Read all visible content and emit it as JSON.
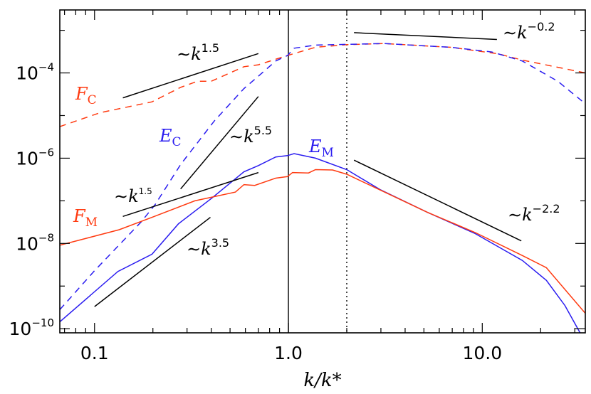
{
  "chart_data": {
    "type": "line",
    "xlabel": "k/k*",
    "xscale": "log",
    "yscale": "log",
    "xlim": [
      0.0662,
      34
    ],
    "ylim": [
      8e-11,
      0.003
    ],
    "grid": false,
    "x_ticks": [
      {
        "value": 0.1,
        "label": "0.1"
      },
      {
        "value": 1.0,
        "label": "1.0"
      },
      {
        "value": 10.0,
        "label": "10.0"
      }
    ],
    "y_ticks": [
      {
        "value": 0.0001,
        "base": "10",
        "exp": "−4"
      },
      {
        "value": 1e-06,
        "base": "10",
        "exp": "−6"
      },
      {
        "value": 1e-08,
        "base": "10",
        "exp": "−8"
      },
      {
        "value": 1e-10,
        "base": "10",
        "exp": "−10"
      }
    ],
    "series": [
      {
        "name": "F_C",
        "label_main": "F",
        "label_sub": "C",
        "color": "#ff3a10",
        "style": "dashed",
        "x": [
          0.0662,
          0.107,
          0.198,
          0.278,
          0.34,
          0.4,
          0.59,
          0.7,
          0.99,
          1.38,
          2.0,
          3.1,
          6.9,
          12.1,
          16.1,
          34
        ],
        "y": [
          5.5e-06,
          1.17e-05,
          2.1e-05,
          4.6e-05,
          6.4e-05,
          6.4e-05,
          0.00014,
          0.000155,
          0.000257,
          0.0004,
          0.00046,
          0.00049,
          0.0004,
          0.00028,
          0.0002,
          0.0001
        ]
      },
      {
        "name": "E_C",
        "label_main": "E",
        "label_sub": "C",
        "color": "#2a1cf0",
        "style": "dashed",
        "x": [
          0.0662,
          0.1,
          0.174,
          0.205,
          0.278,
          0.414,
          0.59,
          0.7,
          0.86,
          0.99,
          1.07,
          1.38,
          3.1,
          6.9,
          11.2,
          16.1,
          24.5,
          34
        ],
        "y": [
          2.8e-10,
          2.3e-09,
          3.2e-08,
          8.1e-08,
          7.1e-07,
          7.4e-06,
          4.3e-05,
          8.4e-05,
          0.00019,
          0.000257,
          0.00038,
          0.00045,
          0.00049,
          0.0004,
          0.00031,
          0.00019,
          6.4e-05,
          1.9e-05
        ]
      },
      {
        "name": "E_M",
        "label_main": "E",
        "label_sub": "M",
        "color": "#2a1cf0",
        "style": "solid",
        "x": [
          0.0662,
          0.132,
          0.198,
          0.271,
          0.4,
          0.59,
          0.7,
          0.86,
          0.99,
          1.07,
          1.38,
          2.0,
          2.97,
          5.2,
          9.2,
          16.1,
          21.4,
          26.7,
          32
        ],
        "y": [
          1.45e-10,
          2.2e-09,
          5.6e-09,
          2.9e-08,
          1.13e-07,
          4.8e-07,
          6.7e-07,
          1.07e-06,
          1.15e-06,
          1.28e-06,
          1e-06,
          5.4e-07,
          1.84e-07,
          5.4e-08,
          1.7e-08,
          4e-09,
          1.36e-09,
          3.5e-10,
          7.9e-11
        ]
      },
      {
        "name": "F_M",
        "label_main": "F",
        "label_sub": "M",
        "color": "#ff3a10",
        "style": "solid",
        "x": [
          0.0662,
          0.134,
          0.198,
          0.329,
          0.533,
          0.59,
          0.67,
          0.86,
          0.99,
          1.05,
          1.27,
          1.38,
          1.69,
          2.0,
          2.97,
          5.2,
          9.2,
          16.1,
          21.4,
          34
        ],
        "y": [
          9.1e-09,
          2.1e-08,
          4.1e-08,
          1e-07,
          1.6e-07,
          2.4e-07,
          2.3e-07,
          3.4e-07,
          3.7e-07,
          4.6e-07,
          4.5e-07,
          5.4e-07,
          5.3e-07,
          4.2e-07,
          1.8e-07,
          5.4e-08,
          1.8e-08,
          5.2e-09,
          2.7e-09,
          2.3e-10
        ]
      }
    ],
    "reference_lines": [
      {
        "label": "∼k",
        "exp": "1.5",
        "x": [
          0.14,
          0.7
        ],
        "y": [
          2.6e-05,
          0.000285
        ]
      },
      {
        "label": "∼k",
        "exp": "5.5",
        "x": [
          0.278,
          0.7
        ],
        "y": [
          1.9e-07,
          2.8e-05
        ]
      },
      {
        "label": "∼k",
        "exp": "1.5",
        "x": [
          0.14,
          0.7
        ],
        "y": [
          4.3e-08,
          4.6e-07
        ]
      },
      {
        "label": "∼k",
        "exp": "3.5",
        "x": [
          0.1,
          0.396
        ],
        "y": [
          3.3e-10,
          4.1e-08
        ]
      },
      {
        "label": "∼k",
        "exp": "−0.2",
        "x": [
          2.18,
          11.9
        ],
        "y": [
          0.00088,
          0.00061
        ]
      },
      {
        "label": "∼k",
        "exp": "−2.2",
        "x": [
          2.18,
          15.9
        ],
        "y": [
          9e-07,
          1.15e-08
        ]
      }
    ],
    "vertical_lines": [
      {
        "x": 1.0,
        "style": "solid"
      },
      {
        "x": 2.0,
        "style": "dotted"
      }
    ]
  }
}
